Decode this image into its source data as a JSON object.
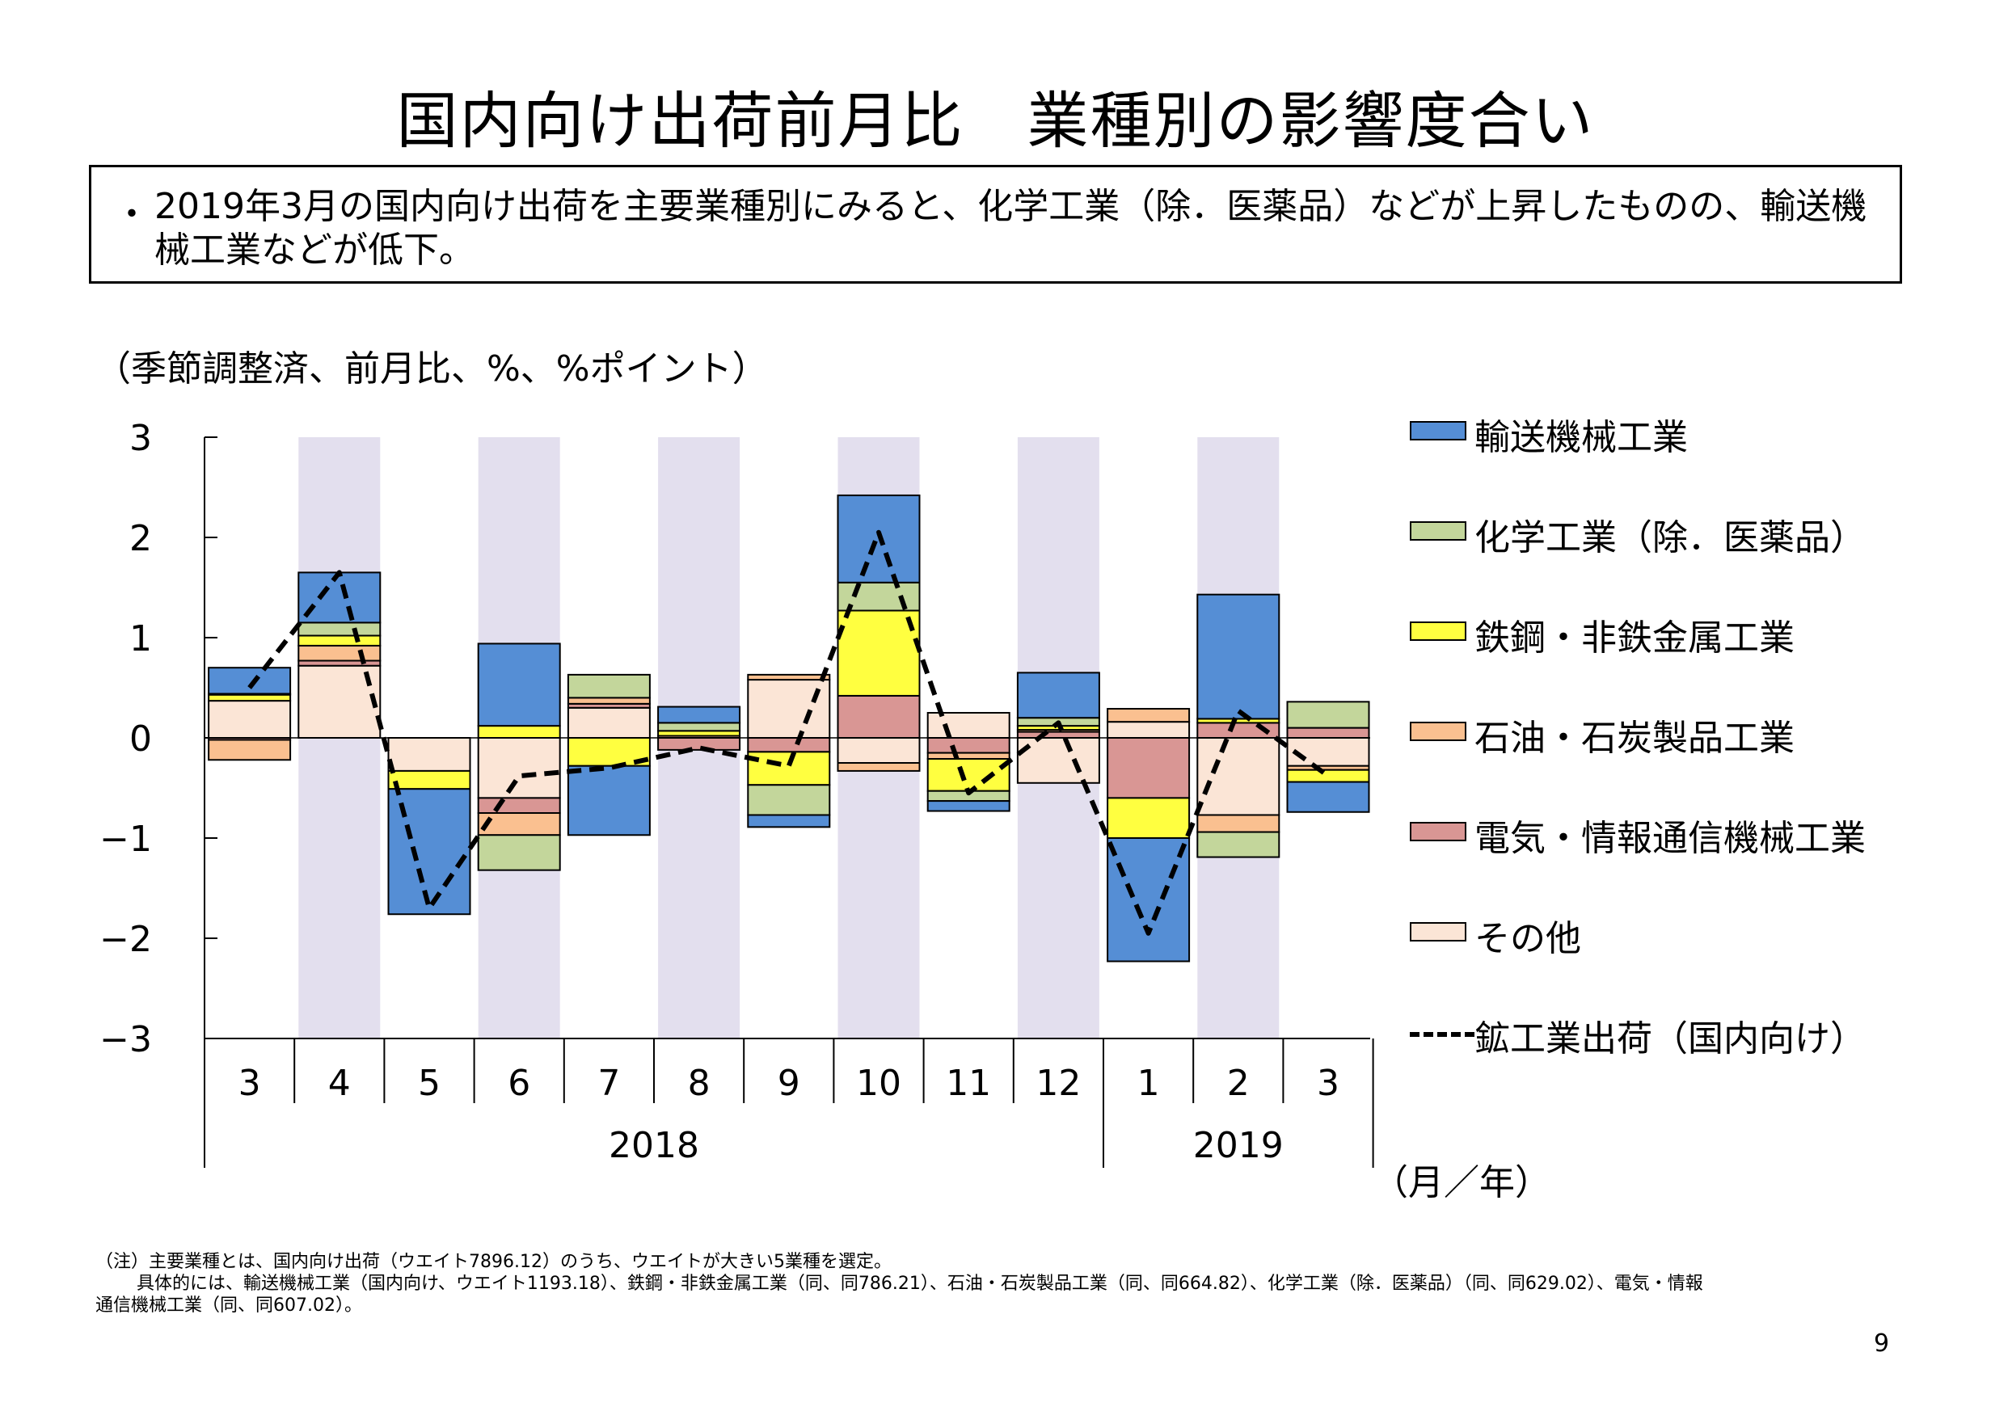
{
  "title": "国内向け出荷前月比　業種別の影響度合い",
  "summary": {
    "bullet": "・",
    "text": "2019年3月の国内向け出荷を主要業種別にみると、化学工業（除．医薬品）などが上昇したものの、輸送機械工業などが低下。"
  },
  "unit_note": "（季節調整済、前月比、%、%ポイント）",
  "x_unit": "（月／年）",
  "footnote": {
    "line1": "（注）主要業種とは、国内向け出荷（ウエイト7896.12）のうち、ウエイトが大きい5業種を選定。",
    "line2": "　　 具体的には、輸送機械工業（国内向け、ウエイト1193.18）、鉄鋼・非鉄金属工業（同、同786.21）、石油・石炭製品工業（同、同664.82）、化学工業（除．医薬品）（同、同629.02）、電気・情報",
    "line3": "通信機械工業（同、同607.02）。"
  },
  "page_number": "9",
  "chart_data": {
    "type": "bar",
    "stacked": true,
    "categories": [
      "3",
      "4",
      "5",
      "6",
      "7",
      "8",
      "9",
      "10",
      "11",
      "12",
      "1",
      "2",
      "3"
    ],
    "year_labels": [
      {
        "label": "2018",
        "from_index": 0,
        "to_index": 9
      },
      {
        "label": "2019",
        "from_index": 10,
        "to_index": 12
      }
    ],
    "ylim": [
      -3,
      3
    ],
    "yticks": [
      3,
      2,
      1,
      0,
      -1,
      -2,
      -3
    ],
    "ytick_labels": [
      "3",
      "2",
      "1",
      "0",
      "−1",
      "−2",
      "−3"
    ],
    "shaded_category_indices": [
      1,
      3,
      5,
      7,
      9,
      11
    ],
    "shade_color": "#e3dfee",
    "series": [
      {
        "name": "その他",
        "color": "#fbe5d6",
        "values": [
          0.37,
          0.72,
          -0.33,
          -0.6,
          0.3,
          0.0,
          0.58,
          -0.25,
          0.25,
          -0.45,
          0.16,
          -0.77,
          -0.28
        ]
      },
      {
        "name": "電気・情報通信機械工業",
        "color": "#d99694",
        "values": [
          -0.02,
          0.05,
          0.0,
          -0.15,
          0.04,
          -0.12,
          -0.14,
          0.42,
          -0.15,
          0.06,
          -0.6,
          0.15,
          0.1
        ]
      },
      {
        "name": "石油・石炭製品工業",
        "color": "#fac090",
        "values": [
          -0.2,
          0.15,
          0.0,
          -0.22,
          0.06,
          0.02,
          0.05,
          -0.08,
          -0.06,
          0.02,
          0.13,
          -0.17,
          -0.04
        ]
      },
      {
        "name": "鉄鋼・非鉄金属工業",
        "color": "#ffff40",
        "values": [
          0.06,
          0.1,
          -0.18,
          0.12,
          -0.28,
          0.05,
          -0.33,
          0.85,
          -0.32,
          0.04,
          -0.4,
          0.04,
          -0.12
        ]
      },
      {
        "name": "化学工業（除．医薬品）",
        "color": "#c3d69b",
        "values": [
          0.01,
          0.13,
          0.0,
          -0.35,
          0.23,
          0.08,
          -0.3,
          0.28,
          -0.1,
          0.08,
          0.0,
          -0.25,
          0.26
        ]
      },
      {
        "name": "輸送機械工業",
        "color": "#558ed5",
        "values": [
          0.26,
          0.5,
          -1.25,
          0.82,
          -0.69,
          0.16,
          -0.12,
          0.87,
          -0.1,
          0.45,
          -1.23,
          1.24,
          -0.3
        ]
      }
    ],
    "line_series": {
      "name": "鉱工業出荷（国内向け）",
      "style": "dashed",
      "color": "#000000",
      "values": [
        0.5,
        1.65,
        -1.7,
        -0.38,
        -0.3,
        -0.1,
        -0.28,
        2.05,
        -0.55,
        0.15,
        -1.95,
        0.27,
        -0.38
      ]
    },
    "legend": [
      {
        "name": "輸送機械工業",
        "color": "#558ed5",
        "kind": "box"
      },
      {
        "name": "化学工業（除．医薬品）",
        "color": "#c3d69b",
        "kind": "box"
      },
      {
        "name": "鉄鋼・非鉄金属工業",
        "color": "#ffff40",
        "kind": "box"
      },
      {
        "name": "石油・石炭製品工業",
        "color": "#fac090",
        "kind": "box"
      },
      {
        "name": "電気・情報通信機械工業",
        "color": "#d99694",
        "kind": "box"
      },
      {
        "name": "その他",
        "color": "#fbe5d6",
        "kind": "box"
      },
      {
        "name": "鉱工業出荷（国内向け）",
        "color": "#000000",
        "kind": "dashed-line"
      }
    ],
    "legend_position": "right"
  }
}
